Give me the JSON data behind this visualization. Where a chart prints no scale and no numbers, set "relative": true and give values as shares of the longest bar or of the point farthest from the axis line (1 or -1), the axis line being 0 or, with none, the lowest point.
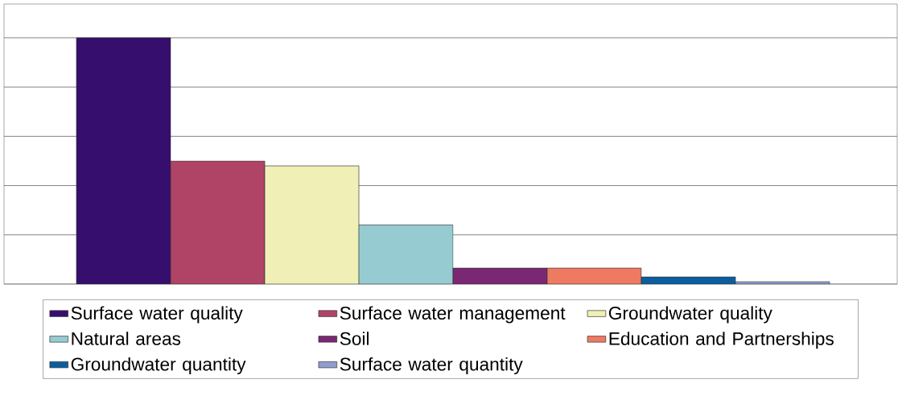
{
  "chart_data": {
    "type": "bar",
    "relative": true,
    "stacked": true,
    "grid": true,
    "legend": "bottom",
    "categories": [
      null,
      null,
      null,
      null,
      null,
      null,
      null,
      null
    ],
    "series": [
      {
        "name": "Surface water quality",
        "color": "#360e6e",
        "values": [
          1,
          null,
          null,
          null,
          null,
          null,
          null,
          null
        ]
      },
      {
        "name": "Surface water management",
        "color": "#b04466",
        "values": [
          null,
          0.5,
          null,
          null,
          null,
          null,
          null,
          null
        ]
      },
      {
        "name": "Groundwater quality",
        "color": "#f0efb6",
        "values": [
          null,
          null,
          0.48,
          null,
          null,
          null,
          null,
          null
        ]
      },
      {
        "name": "Natural areas",
        "color": "#96cbd2",
        "values": [
          null,
          null,
          null,
          0.24,
          null,
          null,
          null,
          null
        ]
      },
      {
        "name": "Soil",
        "color": "#7a2873",
        "values": [
          null,
          null,
          null,
          null,
          0.065,
          null,
          null,
          null
        ]
      },
      {
        "name": "Education and Partnerships",
        "color": "#ee7a62",
        "values": [
          null,
          null,
          null,
          null,
          null,
          0.065,
          null,
          null
        ]
      },
      {
        "name": "Groundwater quantity",
        "color": "#0a5e9f",
        "values": [
          null,
          null,
          null,
          null,
          null,
          null,
          0.029,
          null
        ]
      },
      {
        "name": "Surface water quantity",
        "color": "#8f9dcf",
        "values": [
          null,
          null,
          null,
          null,
          null,
          null,
          null,
          0.01
        ]
      }
    ]
  }
}
